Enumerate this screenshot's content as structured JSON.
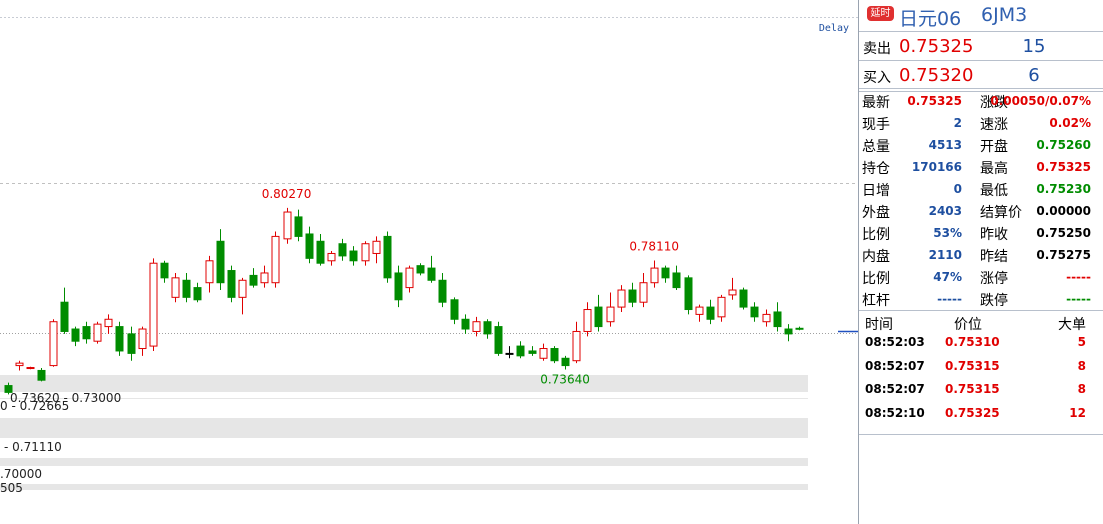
{
  "header": {
    "badge": "延时",
    "name": "日元06",
    "code": "6JM3"
  },
  "quote": {
    "rows": [
      [
        "卖出",
        "0.75325",
        "15"
      ],
      [
        "买入",
        "0.75320",
        "6"
      ]
    ]
  },
  "stats": [
    {
      "label": "最新",
      "value": "0.75325",
      "color": "#e00000"
    },
    {
      "label": "涨跌",
      "value": "0.00050/0.07%",
      "color": "#e00000"
    },
    {
      "label": "现手",
      "value": "2",
      "color": "#1e4fa0"
    },
    {
      "label": "速涨",
      "value": "0.02%",
      "color": "#e00000"
    },
    {
      "label": "总量",
      "value": "4513",
      "color": "#1e4fa0"
    },
    {
      "label": "开盘",
      "value": "0.75260",
      "color": "#008c00"
    },
    {
      "label": "持仓",
      "value": "170166",
      "color": "#1e4fa0"
    },
    {
      "label": "最高",
      "value": "0.75325",
      "color": "#e00000"
    },
    {
      "label": "日增",
      "value": "0",
      "color": "#1e4fa0"
    },
    {
      "label": "最低",
      "value": "0.75230",
      "color": "#008c00"
    },
    {
      "label": "外盘",
      "value": "2403",
      "color": "#1e4fa0"
    },
    {
      "label": "结算价",
      "value": "0.00000",
      "color": "#000000"
    },
    {
      "label": "比例",
      "value": "53%",
      "color": "#1e4fa0"
    },
    {
      "label": "昨收",
      "value": "0.75250",
      "color": "#000000"
    },
    {
      "label": "内盘",
      "value": "2110",
      "color": "#1e4fa0"
    },
    {
      "label": "昨结",
      "value": "0.75275",
      "color": "#000000"
    },
    {
      "label": "比例",
      "value": "47%",
      "color": "#1e4fa0"
    },
    {
      "label": "涨停",
      "value": "-----",
      "color": "#e00000"
    },
    {
      "label": "杠杆",
      "value": "-----",
      "color": "#1e4fa0"
    },
    {
      "label": "跌停",
      "value": "-----",
      "color": "#008c00"
    }
  ],
  "trades": {
    "columns": [
      "时间",
      "价位",
      "大单"
    ],
    "rows": [
      [
        "08:52:03",
        "0.75310",
        "5"
      ],
      [
        "08:52:07",
        "0.75315",
        "8"
      ],
      [
        "08:52:07",
        "0.75315",
        "8"
      ],
      [
        "08:52:10",
        "0.75325",
        "12"
      ]
    ]
  },
  "delay_label": "Delay",
  "zone_labels": [
    "0.73620 - 0.73000",
    "0 - 0.72665",
    "- 0.71110",
    ".70000",
    "505"
  ],
  "chart_data": {
    "type": "candlestick",
    "up_color": "#e00000",
    "down_color": "#008c00",
    "flat_color": "#000000",
    "ylim": [
      0.673,
      0.888
    ],
    "open": [
      0.7298,
      0.738,
      0.737,
      0.736,
      0.738,
      0.764,
      0.753,
      0.754,
      0.748,
      0.754,
      0.754,
      0.751,
      0.745,
      0.746,
      0.78,
      0.766,
      0.773,
      0.77,
      0.772,
      0.789,
      0.777,
      0.766,
      0.775,
      0.772,
      0.772,
      0.79,
      0.799,
      0.792,
      0.789,
      0.781,
      0.788,
      0.785,
      0.781,
      0.784,
      0.791,
      0.776,
      0.77,
      0.779,
      0.778,
      0.773,
      0.765,
      0.757,
      0.752,
      0.756,
      0.754,
      0.743,
      0.746,
      0.744,
      0.741,
      0.745,
      0.741,
      0.74,
      0.752,
      0.762,
      0.756,
      0.762,
      0.769,
      0.764,
      0.772,
      0.778,
      0.776,
      0.774,
      0.759,
      0.762,
      0.758,
      0.767,
      0.769,
      0.762,
      0.756,
      0.76,
      0.753,
      0.7533
    ],
    "high": [
      0.731,
      0.74,
      0.7375,
      0.737,
      0.757,
      0.77,
      0.754,
      0.756,
      0.756,
      0.759,
      0.756,
      0.754,
      0.754,
      0.782,
      0.781,
      0.776,
      0.776,
      0.772,
      0.783,
      0.794,
      0.779,
      0.774,
      0.778,
      0.779,
      0.793,
      0.8027,
      0.802,
      0.795,
      0.792,
      0.785,
      0.79,
      0.787,
      0.789,
      0.791,
      0.793,
      0.779,
      0.779,
      0.78,
      0.783,
      0.776,
      0.766,
      0.759,
      0.758,
      0.757,
      0.756,
      0.746,
      0.748,
      0.746,
      0.747,
      0.746,
      0.742,
      0.756,
      0.764,
      0.767,
      0.768,
      0.771,
      0.772,
      0.776,
      0.7811,
      0.779,
      0.779,
      0.775,
      0.763,
      0.765,
      0.767,
      0.774,
      0.77,
      0.764,
      0.761,
      0.764,
      0.755,
      0.754
    ],
    "low": [
      0.7262,
      0.736,
      0.7365,
      0.7315,
      0.7375,
      0.751,
      0.746,
      0.747,
      0.747,
      0.751,
      0.742,
      0.74,
      0.742,
      0.744,
      0.772,
      0.764,
      0.764,
      0.764,
      0.768,
      0.769,
      0.764,
      0.759,
      0.77,
      0.77,
      0.77,
      0.788,
      0.789,
      0.78,
      0.779,
      0.779,
      0.781,
      0.779,
      0.779,
      0.78,
      0.772,
      0.762,
      0.768,
      0.775,
      0.772,
      0.762,
      0.755,
      0.751,
      0.75,
      0.749,
      0.742,
      0.741,
      0.741,
      0.742,
      0.74,
      0.739,
      0.7364,
      0.739,
      0.75,
      0.752,
      0.754,
      0.76,
      0.762,
      0.762,
      0.77,
      0.772,
      0.769,
      0.759,
      0.756,
      0.755,
      0.756,
      0.765,
      0.761,
      0.756,
      0.754,
      0.752,
      0.748,
      0.7525
    ],
    "close": [
      0.727,
      0.739,
      0.7372,
      0.732,
      0.756,
      0.752,
      0.748,
      0.749,
      0.755,
      0.757,
      0.744,
      0.743,
      0.753,
      0.78,
      0.774,
      0.774,
      0.766,
      0.765,
      0.781,
      0.772,
      0.766,
      0.773,
      0.771,
      0.776,
      0.791,
      0.801,
      0.791,
      0.782,
      0.78,
      0.784,
      0.783,
      0.781,
      0.788,
      0.789,
      0.774,
      0.765,
      0.778,
      0.776,
      0.773,
      0.764,
      0.757,
      0.753,
      0.756,
      0.751,
      0.743,
      0.743,
      0.742,
      0.743,
      0.745,
      0.74,
      0.738,
      0.752,
      0.761,
      0.754,
      0.762,
      0.769,
      0.764,
      0.772,
      0.778,
      0.774,
      0.77,
      0.761,
      0.762,
      0.757,
      0.766,
      0.769,
      0.762,
      0.758,
      0.759,
      0.754,
      0.751,
      0.7532
    ],
    "annotations": [
      {
        "value": 0.8027,
        "label": "0.80270",
        "at": "high"
      },
      {
        "value": 0.7811,
        "label": "0.78110",
        "at": "high"
      },
      {
        "value": 0.7364,
        "label": "0.73640",
        "at": "low"
      }
    ]
  }
}
